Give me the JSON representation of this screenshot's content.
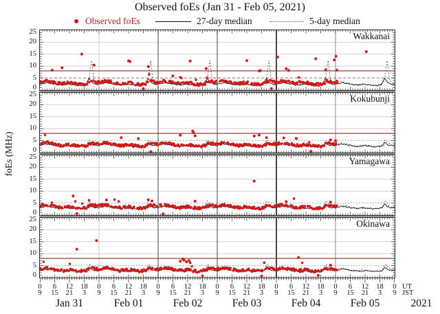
{
  "title": "Observed foEs (Jan 31 - Feb 05, 2021)",
  "legend": {
    "observed": "Observed foEs",
    "median27": "27-day median",
    "median5": "5-day median"
  },
  "y_axis_label": "foEs (MHz)",
  "year_label": "2021",
  "colors": {
    "observed": "#cf1b1b",
    "legend_observed_text": "#b22222",
    "median27": "#141414",
    "median5": "#3a3a3a",
    "critical_line": "#a23c3c",
    "line5_red": "#c45050",
    "line5_gray": "#8f8f8f",
    "gridline_light": "#c9c9c9",
    "tick": "#222222"
  },
  "chart_data": {
    "type": "scatter",
    "title": "Observed foEs (Jan 31 - Feb 05, 2021)",
    "x_axis": {
      "description": "hours from Jan 31 2021 00:00 UT",
      "hours_total": 144,
      "major_tick_step_hours": 6,
      "minor_tick_step_hours": 1,
      "ut_tick_cycle": [
        "0",
        "6",
        "12",
        "18"
      ],
      "jst_tick_cycle": [
        "9",
        "15",
        "21",
        "3"
      ],
      "unit_labels": {
        "ut": "UT",
        "jst": "JST"
      },
      "day_labels": [
        "Jan 31",
        "Feb 01",
        "Feb 02",
        "Feb 03",
        "Feb 04",
        "Feb 05"
      ],
      "day_gridlines": [
        {
          "hour": 24,
          "color": "#c6c6c6",
          "width": 1
        },
        {
          "hour": 48,
          "color": "#6e6e6e",
          "width": 1.3
        },
        {
          "hour": 72,
          "color": "#6e6e6e",
          "width": 1.3
        },
        {
          "hour": 96,
          "color": "#474747",
          "width": 2
        },
        {
          "hour": 120,
          "color": "#9b9b9b",
          "width": 1.2
        }
      ]
    },
    "y_axis": {
      "label": "foEs (MHz)",
      "min": 0,
      "max": 25,
      "major_ticks": [
        0,
        5,
        10,
        15,
        20,
        25
      ],
      "minor_step": 1,
      "light_gridlines": [
        10,
        15,
        20
      ]
    },
    "series_legend": [
      {
        "name": "Observed foEs",
        "style": "red-dot"
      },
      {
        "name": "27-day median",
        "style": "black-solid-line"
      },
      {
        "name": "5-day median",
        "style": "black-dotted-line"
      }
    ],
    "panels": [
      {
        "name": "Wakkanai",
        "critical_line_mhz": 8,
        "line5_mhz": 5,
        "line5_style": "red-dashed",
        "scatter_end_hour": 121,
        "scatter_spread": 0.55,
        "scatter_gap_fraction": 0.3,
        "scatter_hourly_typical": [
          3.3,
          3.5,
          3.7,
          3.8,
          3.6,
          3.4,
          3.1,
          2.9,
          2.7,
          2.6,
          2.8,
          3.0,
          3.1,
          2.9,
          2.7,
          2.5,
          2.4,
          2.3,
          2.4,
          2.7,
          3.4,
          3.8,
          3.5,
          3.3
        ],
        "median27_daily": [
          2.4,
          2.6,
          2.9,
          3.1,
          3.0,
          2.8,
          2.5,
          2.3,
          2.2,
          2.1,
          2.2,
          2.4,
          2.3,
          2.2,
          2.1,
          2.0,
          1.9,
          1.9,
          2.1,
          2.6,
          4.9,
          3.4,
          2.6,
          2.4
        ],
        "median5_daily": [
          2.8,
          3.2,
          3.5,
          3.4,
          3.1,
          2.9,
          2.7,
          2.5,
          2.3,
          2.2,
          2.4,
          2.7,
          2.5,
          2.3,
          2.2,
          2.1,
          2.1,
          2.2,
          2.4,
          3.0,
          5.2,
          12.4,
          3.8,
          3.0
        ],
        "outlier_points": [
          [
            5,
            8.3
          ],
          [
            9,
            9.3
          ],
          [
            17,
            15.0
          ],
          [
            22,
            10.4
          ],
          [
            36,
            12.2
          ],
          [
            36.6,
            11.9
          ],
          [
            44,
            9.8
          ],
          [
            54,
            5.9
          ],
          [
            61,
            12.1
          ],
          [
            67.5,
            9.0
          ],
          [
            84,
            12.3
          ],
          [
            89,
            8.0
          ],
          [
            89.5,
            8.1
          ],
          [
            96.5,
            13.8
          ],
          [
            100,
            8.9
          ],
          [
            101,
            8.2
          ],
          [
            112,
            13.1
          ],
          [
            116,
            8.4
          ],
          [
            119.5,
            12.6
          ],
          [
            120.2,
            14.1
          ],
          [
            120.6,
            8.3
          ],
          [
            132.5,
            16.0
          ],
          [
            42,
            0.5
          ],
          [
            94,
            0.6
          ]
        ]
      },
      {
        "name": "Kokubunji",
        "critical_line_mhz": 8,
        "line5_mhz": 5,
        "line5_style": "gray-dotted",
        "scatter_end_hour": 121,
        "scatter_spread": 0.5,
        "scatter_gap_fraction": 0.28,
        "scatter_hourly_typical": [
          3.6,
          3.8,
          4.0,
          4.1,
          3.9,
          3.7,
          3.4,
          3.2,
          3.0,
          2.9,
          3.0,
          3.2,
          3.3,
          3.1,
          2.9,
          2.8,
          2.7,
          2.6,
          2.7,
          3.0,
          3.6,
          3.9,
          3.8,
          3.6
        ],
        "median27_daily": [
          3.0,
          3.2,
          3.4,
          3.5,
          3.4,
          3.2,
          3.0,
          2.8,
          2.7,
          2.6,
          2.7,
          2.9,
          2.8,
          2.7,
          2.6,
          2.5,
          2.4,
          2.4,
          2.5,
          2.8,
          4.2,
          3.4,
          3.1,
          3.0
        ],
        "median5_daily": [
          3.3,
          3.5,
          3.8,
          3.9,
          3.7,
          3.5,
          3.2,
          3.0,
          2.9,
          2.8,
          3.0,
          3.2,
          3.0,
          2.9,
          2.8,
          2.7,
          2.6,
          2.6,
          2.8,
          3.2,
          5.4,
          4.4,
          3.6,
          3.3
        ],
        "outlier_points": [
          [
            33,
            6.2
          ],
          [
            40,
            5.8
          ],
          [
            57,
            7.3
          ],
          [
            62,
            9.0
          ],
          [
            62.4,
            8.3
          ],
          [
            63,
            7.0
          ],
          [
            87,
            6.9
          ],
          [
            89,
            7.3
          ],
          [
            92,
            6.2
          ],
          [
            99,
            6.1
          ],
          [
            104,
            5.9
          ],
          [
            118,
            5.3
          ],
          [
            120,
            4.9
          ],
          [
            45,
            0.4
          ],
          [
            110,
            0.5
          ]
        ]
      },
      {
        "name": "Yamagawa",
        "critical_line_mhz": null,
        "line5_mhz": 5,
        "line5_style": "gray-dotted",
        "scatter_end_hour": 121,
        "scatter_spread": 0.5,
        "scatter_gap_fraction": 0.26,
        "scatter_hourly_typical": [
          3.8,
          4.0,
          4.2,
          4.3,
          4.1,
          3.9,
          3.6,
          3.4,
          3.2,
          3.1,
          3.2,
          3.4,
          3.5,
          3.3,
          3.1,
          3.0,
          2.9,
          2.8,
          2.9,
          3.2,
          3.8,
          4.1,
          4.0,
          3.8
        ],
        "median27_daily": [
          3.1,
          3.3,
          3.5,
          3.6,
          3.5,
          3.3,
          3.1,
          2.9,
          2.8,
          2.7,
          2.8,
          3.0,
          2.9,
          2.8,
          2.7,
          2.6,
          2.6,
          2.5,
          2.7,
          3.0,
          4.6,
          3.6,
          3.2,
          3.1
        ],
        "median5_daily": [
          3.4,
          3.6,
          3.9,
          4.0,
          3.8,
          3.6,
          3.3,
          3.1,
          3.0,
          2.9,
          3.1,
          3.3,
          3.1,
          3.0,
          2.9,
          2.8,
          2.7,
          2.7,
          2.9,
          3.3,
          6.0,
          4.8,
          3.7,
          3.4
        ],
        "outlier_points": [
          [
            13.5,
            8.0
          ],
          [
            27,
            6.3
          ],
          [
            44,
            6.4
          ],
          [
            45.5,
            5.9
          ],
          [
            63,
            5.8
          ],
          [
            87,
            14.2
          ],
          [
            100,
            5.6
          ],
          [
            118,
            5.4
          ],
          [
            50,
            0.5
          ],
          [
            15,
            0.6
          ]
        ]
      },
      {
        "name": "Okinawa",
        "critical_line_mhz": 8,
        "line5_mhz": 5,
        "line5_style": "gray-dotted",
        "scatter_end_hour": 121,
        "scatter_spread": 0.55,
        "scatter_gap_fraction": 0.28,
        "scatter_hourly_typical": [
          3.5,
          3.7,
          3.9,
          4.0,
          3.8,
          3.6,
          3.4,
          3.2,
          3.0,
          2.9,
          3.0,
          3.2,
          3.3,
          3.1,
          2.9,
          2.8,
          2.7,
          2.7,
          2.8,
          3.1,
          3.6,
          3.9,
          3.8,
          3.6
        ],
        "median27_daily": [
          3.0,
          3.2,
          3.4,
          3.5,
          3.4,
          3.2,
          3.0,
          2.9,
          2.8,
          2.7,
          2.8,
          2.9,
          2.9,
          2.8,
          2.7,
          2.6,
          2.5,
          2.5,
          2.6,
          2.9,
          4.0,
          3.4,
          3.1,
          3.0
        ],
        "median5_daily": [
          3.3,
          3.5,
          3.7,
          3.8,
          3.7,
          3.5,
          3.3,
          3.1,
          3.0,
          2.9,
          3.1,
          3.2,
          3.1,
          3.0,
          2.9,
          2.8,
          2.8,
          2.7,
          2.9,
          3.2,
          5.6,
          4.6,
          3.6,
          3.4
        ],
        "outlier_points": [
          [
            15,
            11.9
          ],
          [
            23,
            15.5
          ],
          [
            57,
            6.8
          ],
          [
            58,
            7.8
          ],
          [
            58.5,
            7.3
          ],
          [
            59.5,
            6.6
          ],
          [
            60.5,
            7.1
          ],
          [
            61,
            6.2
          ],
          [
            105,
            8.4
          ],
          [
            66,
            0.7
          ],
          [
            90,
            0.6
          ],
          [
            113,
            0.9
          ],
          [
            118,
            5.2
          ]
        ]
      }
    ]
  }
}
